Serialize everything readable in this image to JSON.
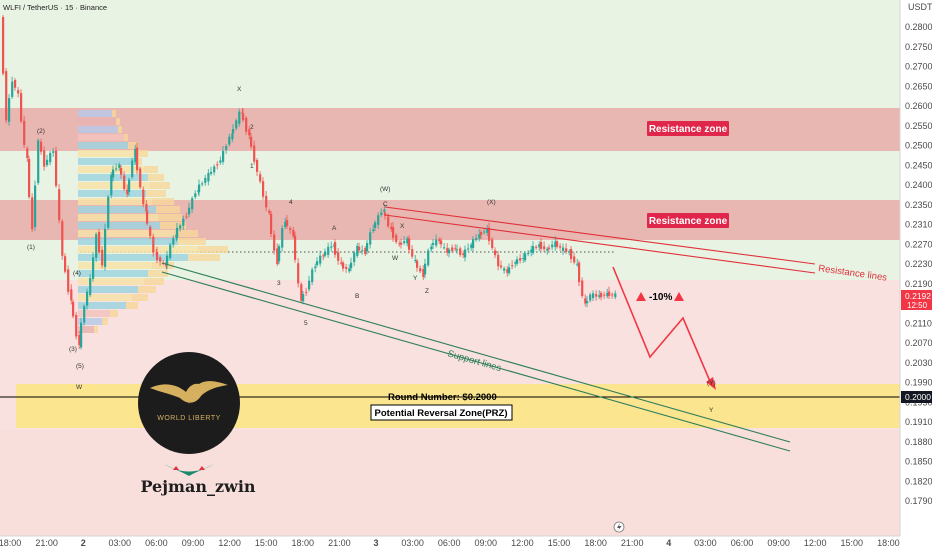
{
  "header": {
    "title": "WLFI / TetherUS · 15 · Binance",
    "currency": "USDT"
  },
  "chart_data": {
    "type": "candlestick",
    "ylim": [
      0.1775,
      0.285
    ],
    "y_ticks": [
      "0.2800",
      "0.2750",
      "0.2700",
      "0.2650",
      "0.2600",
      "0.2550",
      "0.2500",
      "0.2450",
      "0.2400",
      "0.2350",
      "0.2310",
      "0.2270",
      "0.2230",
      "0.2190",
      "0.2150",
      "0.2110",
      "0.2070",
      "0.2030",
      "0.1990",
      "0.1950",
      "0.1910",
      "0.1880",
      "0.1850",
      "0.1820",
      "0.1790"
    ],
    "x_ticks": [
      "18:00",
      "21:00",
      "2",
      "03:00",
      "06:00",
      "09:00",
      "12:00",
      "15:00",
      "18:00",
      "21:00",
      "3",
      "03:00",
      "06:00",
      "09:00",
      "12:00",
      "15:00",
      "18:00",
      "21:00",
      "4",
      "03:00",
      "06:00",
      "09:00",
      "12:00",
      "15:00",
      "18:00"
    ],
    "x_tick_bold": [
      "2",
      "3",
      "4"
    ],
    "price_badge": {
      "value": "0.2192",
      "countdown": "12:50",
      "color": "#f23645"
    },
    "level_badge": {
      "value": "0.2000",
      "color": "#131722"
    },
    "zones": [
      {
        "label": "Resistance zone",
        "from": 0.2508,
        "to": 0.2605,
        "color": "#e8a8a4"
      },
      {
        "label": "Resistance zone",
        "from": 0.231,
        "to": 0.2395,
        "color": "#e8a8a4"
      },
      {
        "label": "Potential Reversal Zone(PRZ)",
        "from": 0.1945,
        "to": 0.2025,
        "color": "#fbe58a"
      }
    ],
    "round_number": {
      "label": "Round Number: $0.2000",
      "value": 0.2
    },
    "annotations": {
      "support": "Support lines",
      "resistance": "Resistance lines",
      "target": "-10%"
    },
    "wave_labels": [
      "(1)",
      "(2)",
      "(3)",
      "(4)",
      "(5)",
      "W",
      "X",
      "Y",
      "(W)",
      "(X)",
      "(Y)",
      "A",
      "B",
      "C",
      "W",
      "X",
      "Y",
      "Z",
      "1",
      "2",
      "3",
      "4",
      "5"
    ],
    "colors": {
      "up": "#26a69a",
      "down": "#ef5350",
      "zone": "#e8a8a4",
      "prz": "#fbe58a",
      "arrow": "#f23645"
    }
  },
  "branding": {
    "logo_text": "WORLD LIBERTY",
    "author": "Pejman_zwin"
  }
}
